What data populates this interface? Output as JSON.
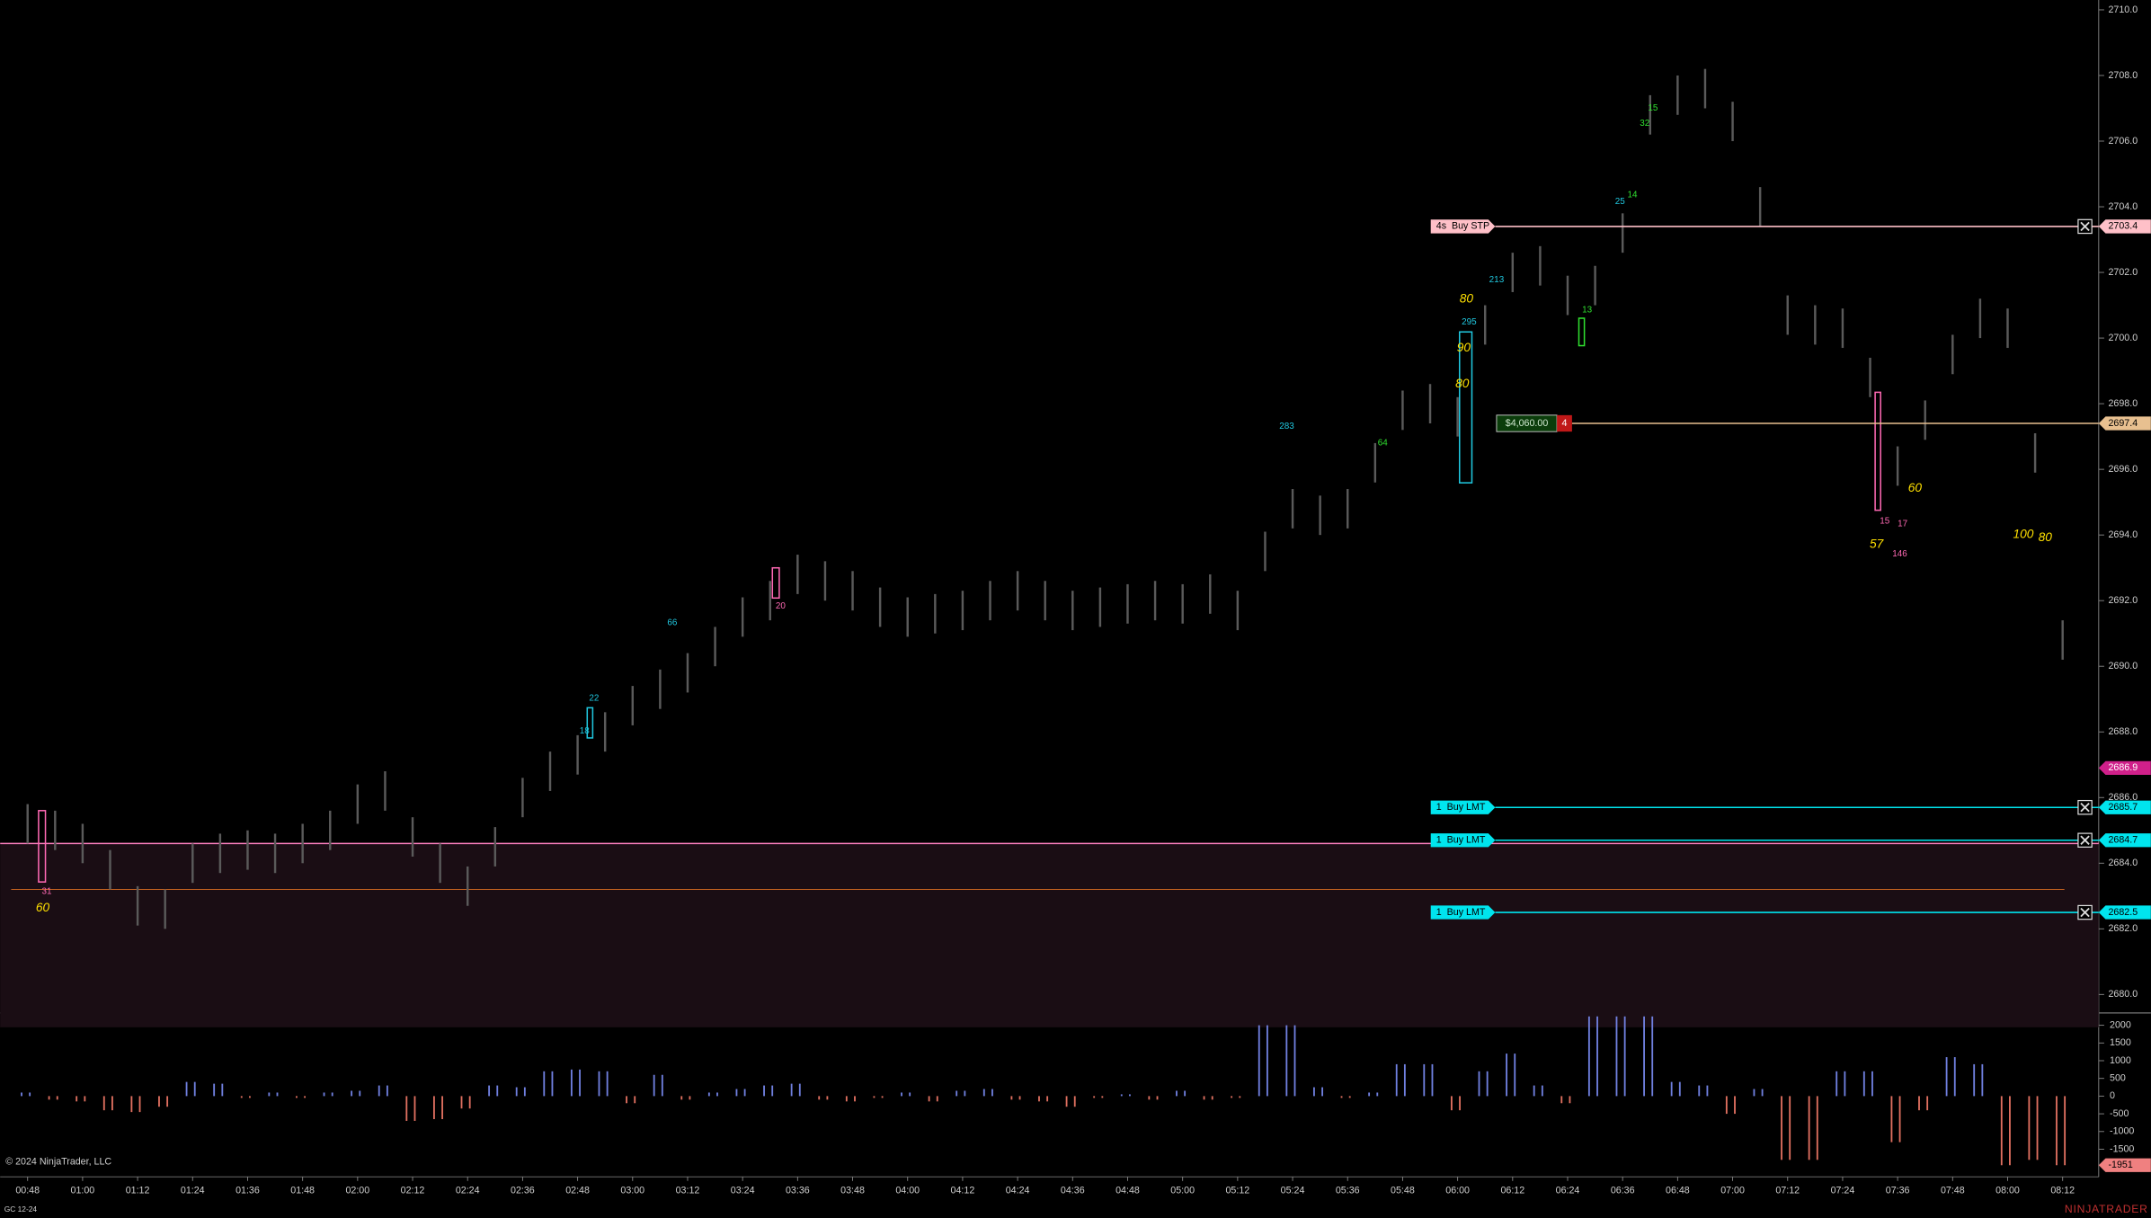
{
  "chart_data": {
    "type": "ohlc",
    "categories": [
      "00:48",
      null,
      "01:00",
      null,
      "01:12",
      null,
      "01:24",
      null,
      "01:36",
      null,
      "01:48",
      null,
      "02:00",
      null,
      "02:12",
      null,
      "02:24",
      null,
      "02:36",
      null,
      "02:48",
      null,
      "03:00",
      null,
      "03:12",
      null,
      "03:24",
      null,
      "03:36",
      null,
      "03:48",
      null,
      "04:00",
      null,
      "04:12",
      null,
      "04:24",
      null,
      "04:36",
      null,
      "04:48",
      null,
      "05:00",
      null,
      "05:12",
      null,
      "05:24",
      null,
      "05:36",
      null,
      "05:48",
      null,
      "06:00",
      null,
      "06:12",
      null,
      "06:24",
      null,
      "06:36",
      null,
      "06:48",
      null,
      "07:00",
      null,
      "07:12",
      null,
      "07:24",
      null,
      "07:36",
      null,
      "07:48",
      null,
      "08:00",
      null,
      "08:12"
    ],
    "series": [
      {
        "color": "#5a5a5a",
        "high": [
          2685.8,
          2685.6,
          2685.2,
          2684.4,
          2683.3,
          2683.2,
          2684.6,
          2684.9,
          2685.0,
          2684.9,
          2685.2,
          2685.6,
          2686.4,
          2686.8,
          2685.4,
          2684.6,
          2683.9,
          2685.1,
          2686.6,
          2687.4,
          2687.9,
          2688.6,
          2689.4,
          2689.9,
          2690.4,
          2691.2,
          2692.1,
          2692.6,
          2693.4,
          2693.2,
          2692.9,
          2692.4,
          2692.1,
          2692.2,
          2692.3,
          2692.6,
          2692.9,
          2692.6,
          2692.3,
          2692.4,
          2692.5,
          2692.6,
          2692.5,
          2692.8,
          2692.3,
          2694.1,
          2695.4,
          2695.2,
          2695.4,
          2696.8,
          2698.4,
          2698.6,
          2698.2,
          2701.0,
          2702.6,
          2702.8,
          2701.9,
          2702.2,
          2703.8,
          2707.4,
          2708.0,
          2708.2,
          2707.2,
          2704.6,
          2701.3,
          2701.0,
          2700.9,
          2699.4,
          2696.7,
          2698.1,
          2700.1,
          2701.2,
          2700.9,
          2697.1,
          2691.4
        ],
        "low": [
          2684.6,
          2684.4,
          2684.0,
          2683.2,
          2682.1,
          2682.0,
          2683.4,
          2683.7,
          2683.8,
          2683.7,
          2684.0,
          2684.4,
          2685.2,
          2685.6,
          2684.2,
          2683.4,
          2682.7,
          2683.9,
          2685.4,
          2686.2,
          2686.7,
          2687.4,
          2688.2,
          2688.7,
          2689.2,
          2690.0,
          2690.9,
          2691.4,
          2692.2,
          2692.0,
          2691.7,
          2691.2,
          2690.9,
          2691.0,
          2691.1,
          2691.4,
          2691.7,
          2691.4,
          2691.1,
          2691.2,
          2691.3,
          2691.4,
          2691.3,
          2691.6,
          2691.1,
          2692.9,
          2694.2,
          2694.0,
          2694.2,
          2695.6,
          2697.2,
          2697.4,
          2697.0,
          2699.8,
          2701.4,
          2701.6,
          2700.7,
          2701.0,
          2702.6,
          2706.2,
          2706.8,
          2707.0,
          2706.0,
          2703.4,
          2700.1,
          2699.8,
          2699.7,
          2698.2,
          2695.5,
          2696.9,
          2698.9,
          2700.0,
          2699.7,
          2695.9,
          2690.2
        ]
      }
    ],
    "ylim": [
      2679.5,
      2710.3
    ],
    "yticks": [
      {
        "value": 2680,
        "label": "2680.0"
      },
      {
        "value": 2682,
        "label": "2682.0"
      },
      {
        "value": 2684,
        "label": "2684.0"
      },
      {
        "value": 2686,
        "label": "2686.0"
      },
      {
        "value": 2688,
        "label": "2688.0"
      },
      {
        "value": 2690,
        "label": "2690.0"
      },
      {
        "value": 2692,
        "label": "2692.0"
      },
      {
        "value": 2694,
        "label": "2694.0"
      },
      {
        "value": 2696,
        "label": "2696.0"
      },
      {
        "value": 2698,
        "label": "2698.0"
      },
      {
        "value": 2700,
        "label": "2700.0"
      },
      {
        "value": 2702,
        "label": "2702.0"
      },
      {
        "value": 2704,
        "label": "2704.0"
      },
      {
        "value": 2706,
        "label": "2706.0"
      },
      {
        "value": 2708,
        "label": "2708.0"
      },
      {
        "value": 2710,
        "label": "2710.0"
      }
    ],
    "last_price": 2686.9,
    "zone": {
      "top": 2684.6,
      "bottom": 2679.0,
      "level": 2683.2
    },
    "orders": [
      {
        "label": "4s  Buy STP",
        "price": 2703.4,
        "color": "#ffc0c8"
      },
      {
        "label": "1  Buy LMT",
        "price": 2685.7,
        "color": "#00e5ee"
      },
      {
        "label": "1  Buy LMT",
        "price": 2684.7,
        "color": "#00e5ee"
      },
      {
        "label": "1  Buy LMT",
        "price": 2682.5,
        "color": "#00e5ee"
      }
    ],
    "position": {
      "pnl": "$4,060.00",
      "quantity": 4,
      "price": 2697.4,
      "color": "#e8c090"
    },
    "annotations": [
      {
        "text": "31",
        "color": "#ff69b4"
      },
      {
        "text": "60",
        "color": "#ffe000"
      },
      {
        "text": "20",
        "color": "#ff69b4"
      },
      {
        "text": "22",
        "color": "#20c8e0"
      },
      {
        "text": "18",
        "color": "#20c8e0"
      },
      {
        "text": "66",
        "color": "#20c8e0"
      },
      {
        "text": "283",
        "color": "#20c8e0"
      },
      {
        "text": "64",
        "color": "#30e030"
      },
      {
        "text": "295",
        "color": "#20c8e0"
      },
      {
        "text": "213",
        "color": "#20c8e0"
      },
      {
        "text": "80",
        "color": "#ffe000"
      },
      {
        "text": "90",
        "color": "#ffe000"
      },
      {
        "text": "80",
        "color": "#ffe000"
      },
      {
        "text": "13",
        "color": "#30e030"
      },
      {
        "text": "25",
        "color": "#20c8e0"
      },
      {
        "text": "14",
        "color": "#30e030"
      },
      {
        "text": "15",
        "color": "#30e030"
      },
      {
        "text": "32",
        "color": "#30e030"
      },
      {
        "text": "15",
        "color": "#ff69b4"
      },
      {
        "text": "17",
        "color": "#ff69b4"
      },
      {
        "text": "146",
        "color": "#ff69b4"
      },
      {
        "text": "57",
        "color": "#ffe000"
      },
      {
        "text": "60",
        "color": "#ffe000"
      },
      {
        "text": "100",
        "color": "#ffe000"
      },
      {
        "text": "80",
        "color": "#ffe000"
      }
    ],
    "indicator": {
      "values": [
        100,
        -100,
        -150,
        -400,
        -450,
        -300,
        400,
        350,
        -50,
        100,
        -50,
        100,
        150,
        300,
        -700,
        -650,
        -350,
        300,
        250,
        700,
        750,
        700,
        -200,
        600,
        -100,
        100,
        200,
        300,
        350,
        -100,
        -150,
        -50,
        100,
        -150,
        150,
        200,
        -100,
        -150,
        -300,
        -50,
        50,
        -100,
        150,
        -100,
        -50,
        2000,
        2000,
        250,
        -50,
        100,
        900,
        900,
        -400,
        700,
        1200,
        300,
        -200,
        2250,
        2250,
        2250,
        400,
        300,
        -500,
        200,
        -1800,
        -1800,
        700,
        700,
        -1300,
        -400,
        1100,
        900,
        -1951,
        -1800,
        -1951
      ],
      "up_color": "#7080e0",
      "down_color": "#e07060",
      "ylim": [
        -2280,
        2290
      ],
      "yticks": [
        2000,
        1500,
        1000,
        500,
        0,
        -500,
        -1000,
        -1500
      ],
      "last_value": -1951
    },
    "instrument": "GC 12-24",
    "copyright": "© 2024 NinjaTrader, LLC",
    "logo": "NINJATRADER"
  }
}
